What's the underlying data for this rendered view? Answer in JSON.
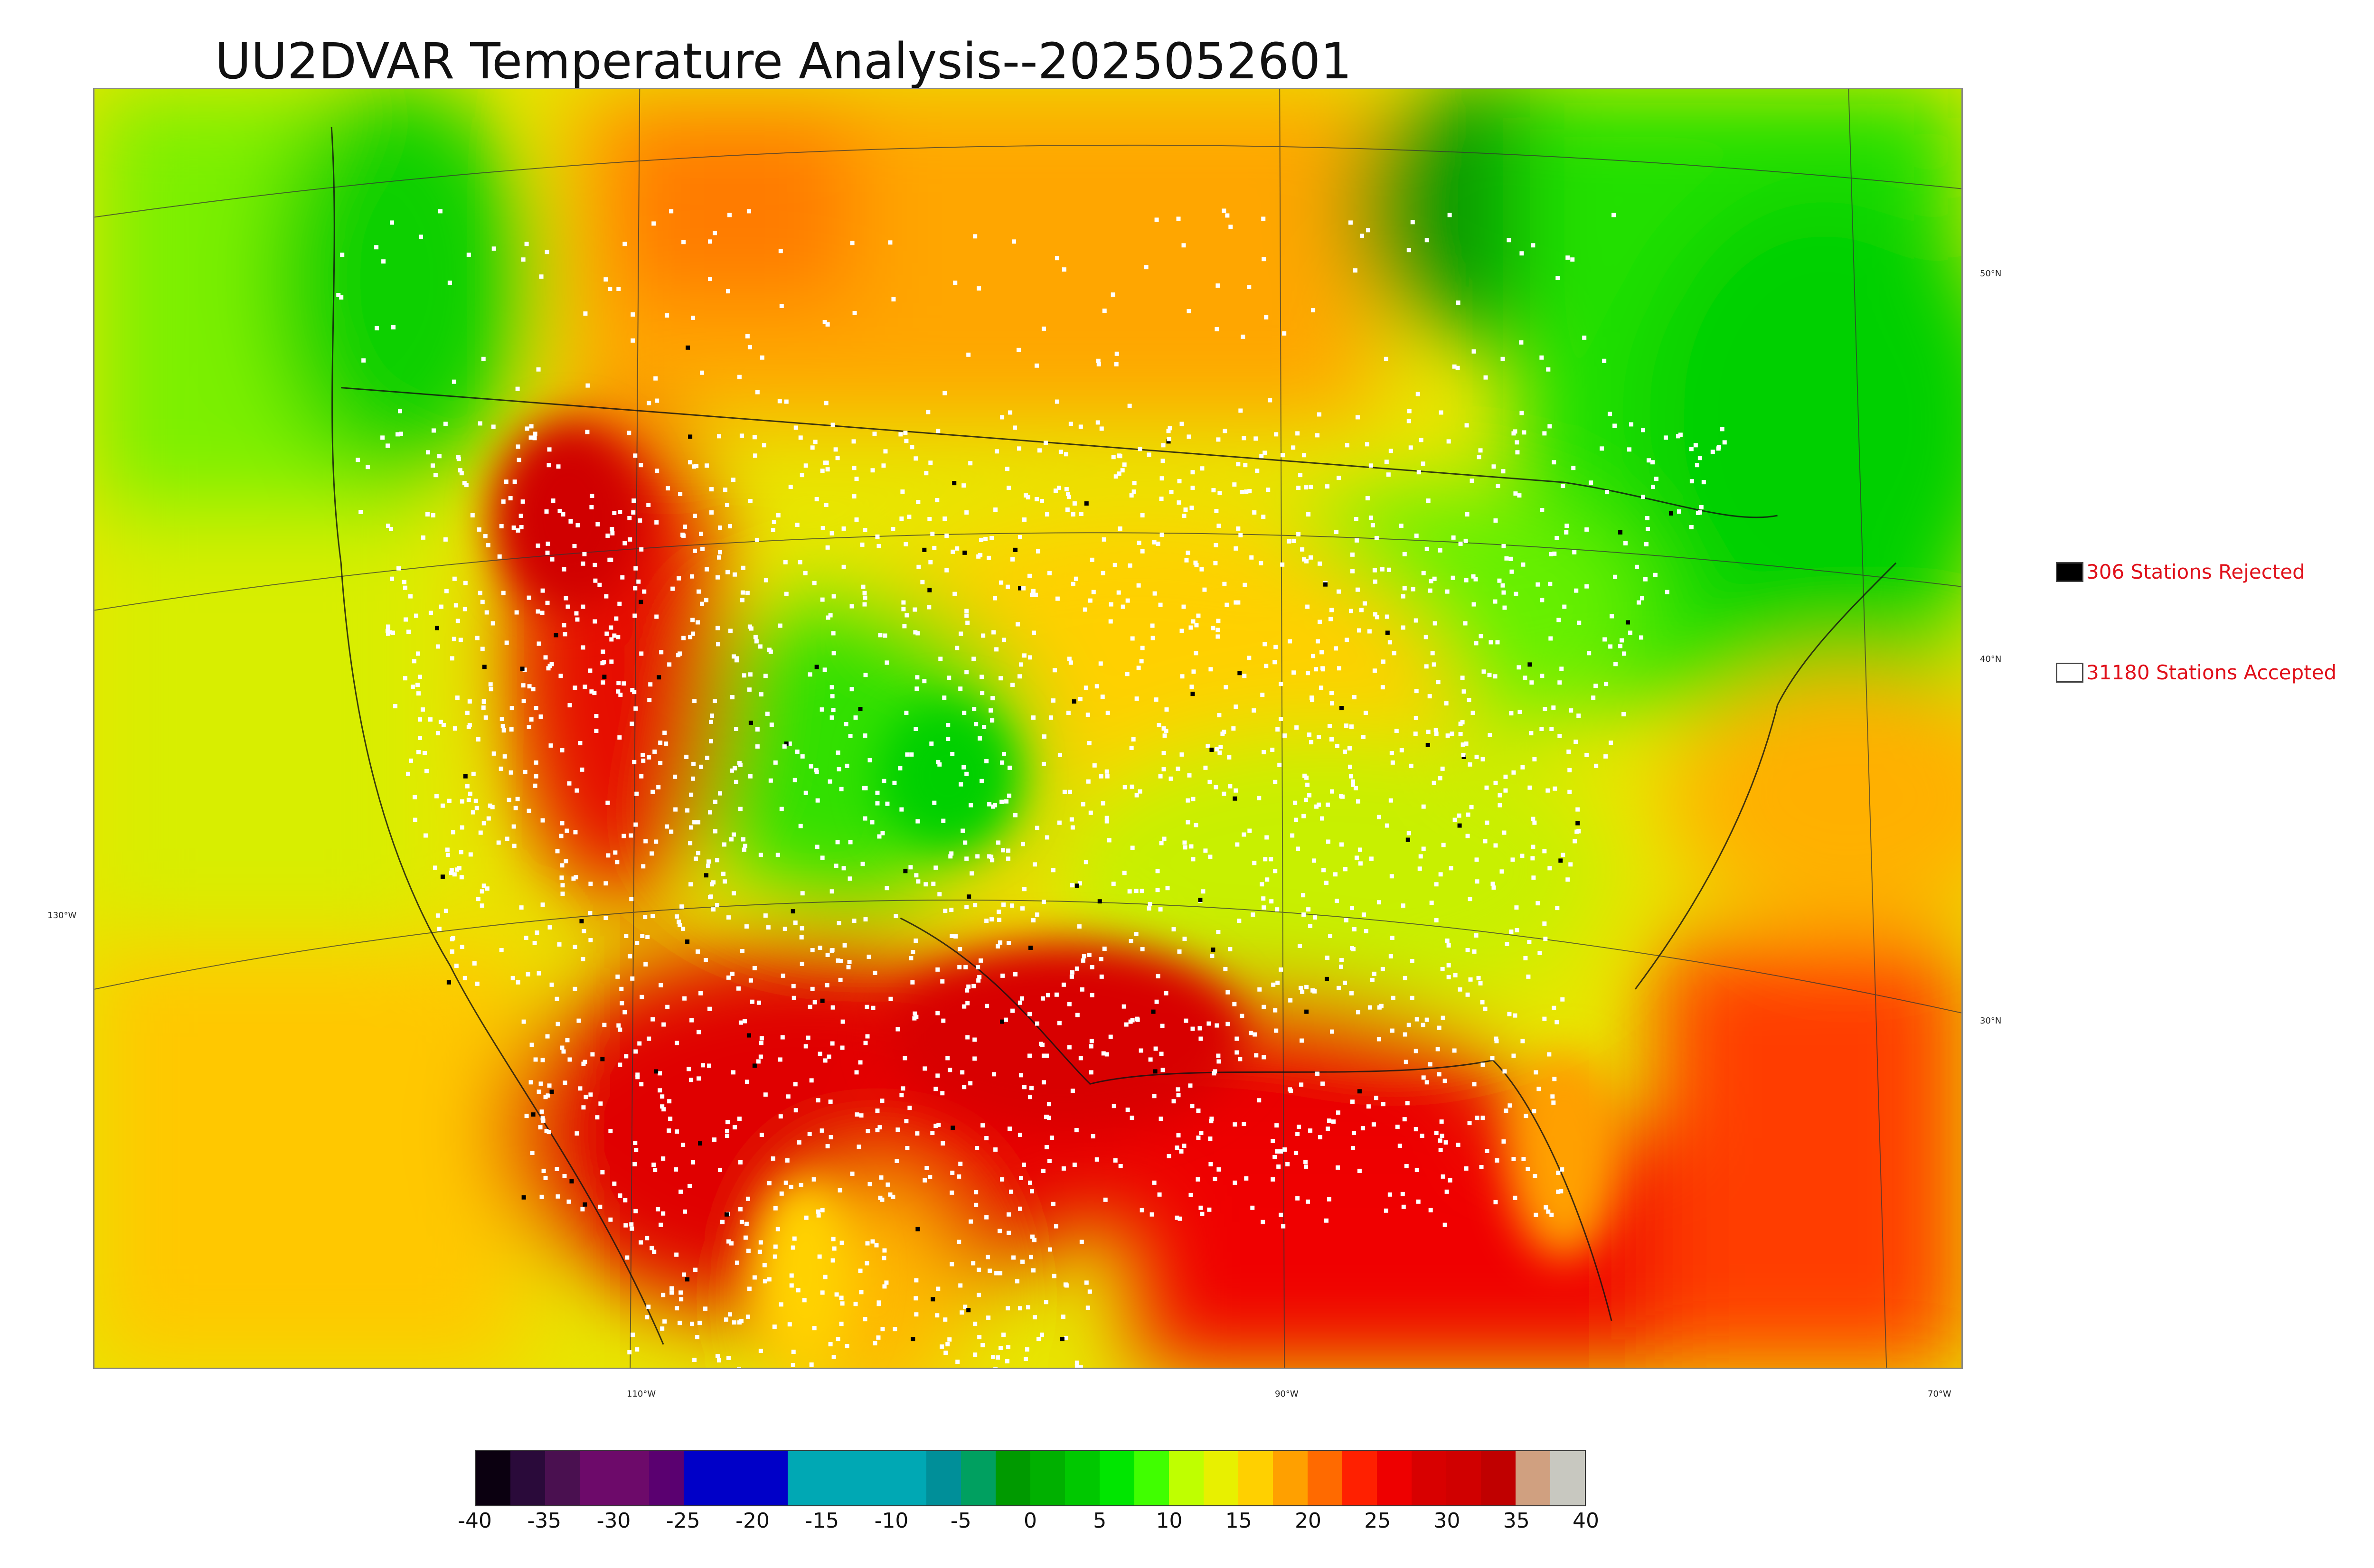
{
  "title": "UU2DVAR Temperature Analysis--2025052601",
  "legend": {
    "rejected": {
      "count": "306",
      "label": "306 Stations Rejected",
      "color": "#000000"
    },
    "accepted": {
      "count": "31180",
      "label": "31180 Stations Accepted",
      "color": "#ffffff"
    }
  },
  "graticule": {
    "lon_labels": [
      "110°W",
      "90°W",
      "70°W"
    ],
    "lat_labels": [
      "50°N",
      "40°N",
      "30°N",
      "130°W"
    ]
  },
  "colorbar": {
    "ticks": [
      "-40",
      "-35",
      "-30",
      "-25",
      "-20",
      "-15",
      "-10",
      "-5",
      "0",
      "5",
      "10",
      "15",
      "20",
      "25",
      "30",
      "35",
      "40"
    ],
    "range": [
      -40,
      40
    ],
    "colors": [
      "#0b0010",
      "#2a0a3a",
      "#4a1050",
      "#6d0a6a",
      "#6d0a6a",
      "#5a0070",
      "#0000c8",
      "#0000c8",
      "#0000c8",
      "#00a8b4",
      "#00a8b4",
      "#00a8b4",
      "#00a8b4",
      "#008f99",
      "#00a060",
      "#009a00",
      "#00b000",
      "#00c800",
      "#00e600",
      "#40ff00",
      "#bfff00",
      "#e8f000",
      "#ffd000",
      "#ffa000",
      "#ff6a00",
      "#ff2000",
      "#ee0000",
      "#d80000",
      "#d00000",
      "#c00000",
      "#d0a080",
      "#c8c8c0"
    ]
  },
  "regions": {
    "ocean_pacific": "#e6e000",
    "ocean_atlantic_south": "#ff3a00",
    "canada_north": "#ffb000",
    "hudson_bay": "#00a000",
    "east_canada": "#00e000",
    "plains": "#ffd200",
    "rockies": "#40e000",
    "southwest": "#e00000",
    "gulf": "#f00000"
  }
}
